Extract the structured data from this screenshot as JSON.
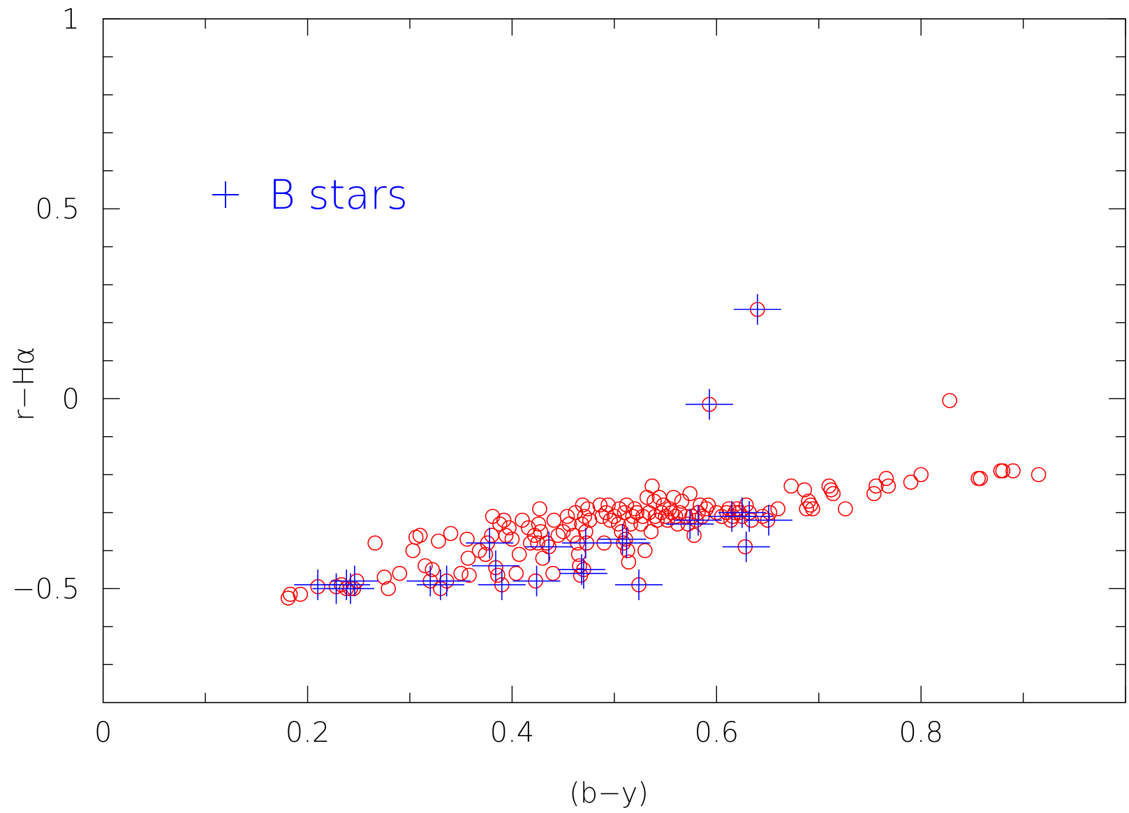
{
  "chart_data": {
    "type": "scatter",
    "title": "",
    "xlabel": "(b−y)",
    "ylabel": "r−Hα",
    "xlim": [
      0,
      1
    ],
    "ylim": [
      -0.8,
      1.0
    ],
    "x_ticks": [
      0,
      0.2,
      0.4,
      0.6,
      0.8
    ],
    "x_tick_labels": [
      "0",
      "0.2",
      "0.4",
      "0.6",
      "0.8"
    ],
    "y_ticks": [
      -0.5,
      0,
      0.5,
      1
    ],
    "y_tick_labels": [
      "−0.5",
      "0",
      "0.5",
      "1"
    ],
    "grid": false,
    "legend": {
      "position": "top-left",
      "entries": [
        {
          "marker": "+",
          "label": "B stars",
          "color": "#0000ff"
        }
      ]
    },
    "colors": {
      "circles": "#ff0000",
      "crosses": "#0000ff"
    },
    "series": [
      {
        "marker": "open-circle",
        "points": [
          [
            0.181,
            -0.525
          ],
          [
            0.183,
            -0.515
          ],
          [
            0.193,
            -0.515
          ],
          [
            0.21,
            -0.495
          ],
          [
            0.228,
            -0.495
          ],
          [
            0.233,
            -0.49
          ],
          [
            0.238,
            -0.5
          ],
          [
            0.242,
            -0.5
          ],
          [
            0.245,
            -0.5
          ],
          [
            0.248,
            -0.48
          ],
          [
            0.266,
            -0.38
          ],
          [
            0.275,
            -0.47
          ],
          [
            0.279,
            -0.5
          ],
          [
            0.29,
            -0.46
          ],
          [
            0.303,
            -0.4
          ],
          [
            0.306,
            -0.365
          ],
          [
            0.31,
            -0.36
          ],
          [
            0.315,
            -0.44
          ],
          [
            0.32,
            -0.48
          ],
          [
            0.322,
            -0.45
          ],
          [
            0.328,
            -0.375
          ],
          [
            0.33,
            -0.5
          ],
          [
            0.336,
            -0.48
          ],
          [
            0.34,
            -0.355
          ],
          [
            0.35,
            -0.46
          ],
          [
            0.356,
            -0.37
          ],
          [
            0.357,
            -0.42
          ],
          [
            0.358,
            -0.465
          ],
          [
            0.368,
            -0.4
          ],
          [
            0.374,
            -0.41
          ],
          [
            0.376,
            -0.38
          ],
          [
            0.38,
            -0.36
          ],
          [
            0.381,
            -0.31
          ],
          [
            0.384,
            -0.445
          ],
          [
            0.386,
            -0.465
          ],
          [
            0.388,
            -0.33
          ],
          [
            0.39,
            -0.49
          ],
          [
            0.392,
            -0.32
          ],
          [
            0.394,
            -0.36
          ],
          [
            0.397,
            -0.34
          ],
          [
            0.4,
            -0.37
          ],
          [
            0.404,
            -0.46
          ],
          [
            0.407,
            -0.41
          ],
          [
            0.41,
            -0.32
          ],
          [
            0.416,
            -0.34
          ],
          [
            0.418,
            -0.38
          ],
          [
            0.422,
            -0.36
          ],
          [
            0.423,
            -0.48
          ],
          [
            0.425,
            -0.38
          ],
          [
            0.426,
            -0.33
          ],
          [
            0.427,
            -0.29
          ],
          [
            0.428,
            -0.35
          ],
          [
            0.43,
            -0.42
          ],
          [
            0.434,
            -0.38
          ],
          [
            0.436,
            -0.39
          ],
          [
            0.44,
            -0.46
          ],
          [
            0.441,
            -0.32
          ],
          [
            0.445,
            -0.36
          ],
          [
            0.45,
            -0.35
          ],
          [
            0.454,
            -0.31
          ],
          [
            0.456,
            -0.33
          ],
          [
            0.46,
            -0.36
          ],
          [
            0.462,
            -0.3
          ],
          [
            0.464,
            -0.38
          ],
          [
            0.465,
            -0.41
          ],
          [
            0.466,
            -0.44
          ],
          [
            0.467,
            -0.465
          ],
          [
            0.468,
            -0.33
          ],
          [
            0.469,
            -0.28
          ],
          [
            0.47,
            -0.45
          ],
          [
            0.471,
            -0.31
          ],
          [
            0.472,
            -0.35
          ],
          [
            0.473,
            -0.38
          ],
          [
            0.474,
            -0.29
          ],
          [
            0.476,
            -0.32
          ],
          [
            0.486,
            -0.28
          ],
          [
            0.488,
            -0.31
          ],
          [
            0.49,
            -0.38
          ],
          [
            0.492,
            -0.3
          ],
          [
            0.494,
            -0.28
          ],
          [
            0.496,
            -0.32
          ],
          [
            0.5,
            -0.31
          ],
          [
            0.504,
            -0.33
          ],
          [
            0.505,
            -0.29
          ],
          [
            0.507,
            -0.35
          ],
          [
            0.509,
            -0.38
          ],
          [
            0.51,
            -0.3
          ],
          [
            0.511,
            -0.37
          ],
          [
            0.512,
            -0.28
          ],
          [
            0.513,
            -0.4
          ],
          [
            0.514,
            -0.43
          ],
          [
            0.516,
            -0.33
          ],
          [
            0.518,
            -0.31
          ],
          [
            0.52,
            -0.29
          ],
          [
            0.522,
            -0.3
          ],
          [
            0.524,
            -0.49
          ],
          [
            0.526,
            -0.33
          ],
          [
            0.528,
            -0.31
          ],
          [
            0.53,
            -0.4
          ],
          [
            0.532,
            -0.26
          ],
          [
            0.534,
            -0.3
          ],
          [
            0.536,
            -0.35
          ],
          [
            0.537,
            -0.23
          ],
          [
            0.539,
            -0.27
          ],
          [
            0.54,
            -0.31
          ],
          [
            0.542,
            -0.32
          ],
          [
            0.544,
            -0.26
          ],
          [
            0.546,
            -0.3
          ],
          [
            0.548,
            -0.28
          ],
          [
            0.55,
            -0.31
          ],
          [
            0.552,
            -0.32
          ],
          [
            0.554,
            -0.29
          ],
          [
            0.556,
            -0.3
          ],
          [
            0.558,
            -0.26
          ],
          [
            0.56,
            -0.31
          ],
          [
            0.562,
            -0.33
          ],
          [
            0.564,
            -0.3
          ],
          [
            0.566,
            -0.27
          ],
          [
            0.57,
            -0.31
          ],
          [
            0.572,
            -0.33
          ],
          [
            0.574,
            -0.25
          ],
          [
            0.576,
            -0.31
          ],
          [
            0.578,
            -0.36
          ],
          [
            0.58,
            -0.32
          ],
          [
            0.582,
            -0.3
          ],
          [
            0.584,
            -0.28
          ],
          [
            0.586,
            -0.31
          ],
          [
            0.59,
            -0.29
          ],
          [
            0.592,
            -0.28
          ],
          [
            0.593,
            -0.015
          ],
          [
            0.6,
            -0.3
          ],
          [
            0.605,
            -0.31
          ],
          [
            0.61,
            -0.3
          ],
          [
            0.612,
            -0.29
          ],
          [
            0.614,
            -0.32
          ],
          [
            0.616,
            -0.31
          ],
          [
            0.618,
            -0.3
          ],
          [
            0.62,
            -0.29
          ],
          [
            0.622,
            -0.3
          ],
          [
            0.625,
            -0.31
          ],
          [
            0.628,
            -0.39
          ],
          [
            0.629,
            -0.28
          ],
          [
            0.632,
            -0.3
          ],
          [
            0.634,
            -0.32
          ],
          [
            0.64,
            0.235
          ],
          [
            0.645,
            -0.31
          ],
          [
            0.65,
            -0.32
          ],
          [
            0.652,
            -0.3
          ],
          [
            0.66,
            -0.29
          ],
          [
            0.673,
            -0.23
          ],
          [
            0.686,
            -0.24
          ],
          [
            0.688,
            -0.29
          ],
          [
            0.69,
            -0.27
          ],
          [
            0.692,
            -0.28
          ],
          [
            0.694,
            -0.29
          ],
          [
            0.71,
            -0.23
          ],
          [
            0.712,
            -0.24
          ],
          [
            0.714,
            -0.25
          ],
          [
            0.726,
            -0.29
          ],
          [
            0.754,
            -0.25
          ],
          [
            0.756,
            -0.23
          ],
          [
            0.766,
            -0.21
          ],
          [
            0.768,
            -0.23
          ],
          [
            0.79,
            -0.22
          ],
          [
            0.8,
            -0.2
          ],
          [
            0.828,
            -0.005
          ],
          [
            0.856,
            -0.21
          ],
          [
            0.858,
            -0.21
          ],
          [
            0.878,
            -0.19
          ],
          [
            0.88,
            -0.19
          ],
          [
            0.89,
            -0.19
          ],
          [
            0.915,
            -0.2
          ]
        ]
      },
      {
        "name": "B stars",
        "marker": "plus",
        "points": [
          [
            0.21,
            -0.49
          ],
          [
            0.228,
            -0.5
          ],
          [
            0.238,
            -0.49
          ],
          [
            0.242,
            -0.5
          ],
          [
            0.246,
            -0.48
          ],
          [
            0.32,
            -0.48
          ],
          [
            0.33,
            -0.49
          ],
          [
            0.336,
            -0.48
          ],
          [
            0.378,
            -0.38
          ],
          [
            0.384,
            -0.44
          ],
          [
            0.39,
            -0.49
          ],
          [
            0.424,
            -0.48
          ],
          [
            0.436,
            -0.39
          ],
          [
            0.468,
            -0.45
          ],
          [
            0.47,
            -0.46
          ],
          [
            0.472,
            -0.38
          ],
          [
            0.508,
            -0.37
          ],
          [
            0.512,
            -0.38
          ],
          [
            0.524,
            -0.49
          ],
          [
            0.574,
            -0.33
          ],
          [
            0.582,
            -0.32
          ],
          [
            0.593,
            -0.015
          ],
          [
            0.615,
            -0.31
          ],
          [
            0.625,
            -0.3
          ],
          [
            0.629,
            -0.39
          ],
          [
            0.632,
            -0.31
          ],
          [
            0.64,
            0.235
          ],
          [
            0.651,
            -0.32
          ]
        ]
      }
    ]
  }
}
